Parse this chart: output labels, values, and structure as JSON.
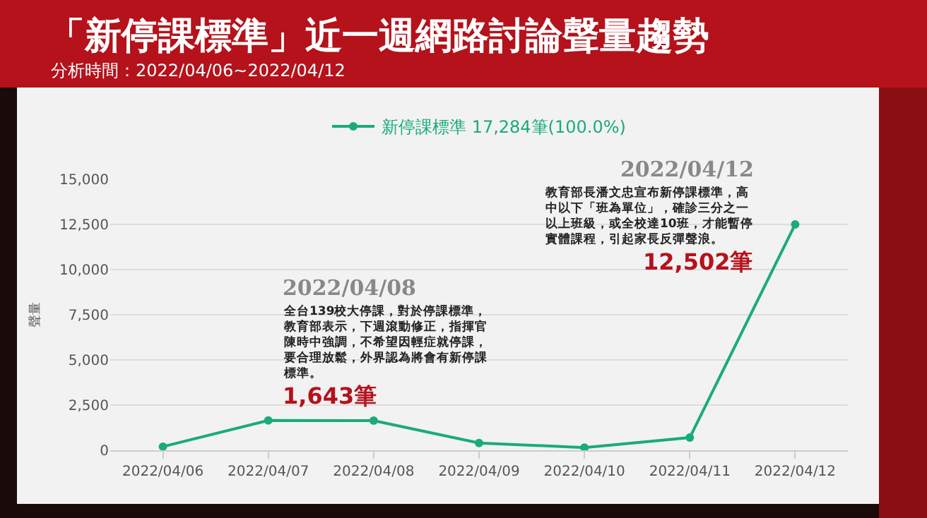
{
  "chart_data": {
    "type": "line",
    "title": "「新停課標準」近一週網路討論聲量趨勢",
    "subtitle": "分析時間：2022/04/06~2022/04/12",
    "ylabel": "聲量",
    "categories": [
      "2022/04/06",
      "2022/04/07",
      "2022/04/08",
      "2022/04/09",
      "2022/04/10",
      "2022/04/11",
      "2022/04/12"
    ],
    "series": [
      {
        "name": "新停課標準 17,284筆(100.0%)",
        "color": "#1aab7a",
        "values": [
          200,
          1650,
          1643,
          400,
          150,
          700,
          12502
        ]
      }
    ],
    "ylim": [
      0,
      15000
    ],
    "yticks": [
      0,
      {
        "value": 2500,
        "label": "2,500"
      },
      {
        "value": 5000,
        "label": "5,000"
      },
      {
        "value": 7500,
        "label": "7,500"
      },
      {
        "value": 10000,
        "label": "10,000"
      },
      {
        "value": 12500,
        "label": "12,500"
      },
      {
        "value": 15000,
        "label": "15,000"
      }
    ],
    "grid": "y",
    "legend": "top",
    "marker": "circle",
    "line_style": "solid",
    "annotations": [
      "2022/04/08",
      "全台139校大停課，對於停課標準，教育部表示，下週滾動修正，指揮官陳時中強調，不希望因輕症就停課，要合理放鬆，外界認為將會有新停課標準。",
      {
        "text": "1,643筆",
        "x": "2022/04/08",
        "y": 1643
      },
      "2022/04/12",
      "教育部長潘文忠宣布新停課標準，高中以下「班為單位」，確診三分之一以上班級，或全校達10班，才能暫停實體課程，引起家長反彈聲浪。",
      {
        "text": "12,502筆",
        "x": "2022/04/12",
        "y": 12502
      }
    ]
  }
}
